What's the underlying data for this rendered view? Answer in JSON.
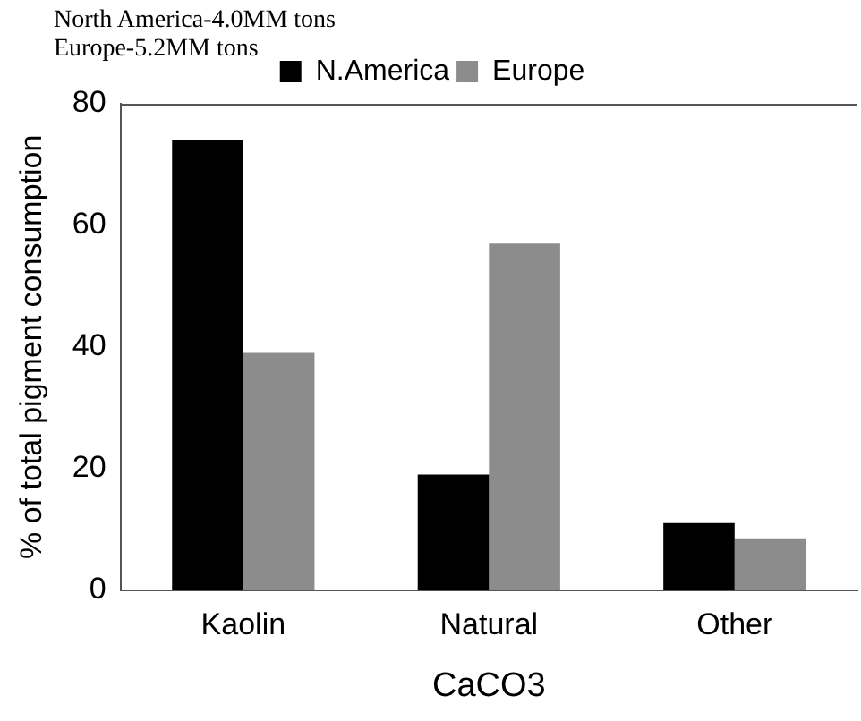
{
  "chart_data": {
    "type": "bar",
    "title": "North America-4.0MM tons",
    "subtitle": "Europe-5.2MM tons",
    "xlabel": "CaCO3",
    "ylabel": "% of total pigment consumption",
    "categories": [
      "Kaolin",
      "Natural",
      "Other"
    ],
    "series": [
      {
        "name": "N.America",
        "color": "#000000",
        "values": [
          74,
          19,
          11
        ]
      },
      {
        "name": "Europe",
        "color": "#8c8c8c",
        "values": [
          39,
          57,
          8.5
        ]
      }
    ],
    "ylim": [
      0,
      80
    ],
    "yticks": [
      0,
      20,
      40,
      60,
      80
    ],
    "grid": false,
    "legend": "top"
  }
}
